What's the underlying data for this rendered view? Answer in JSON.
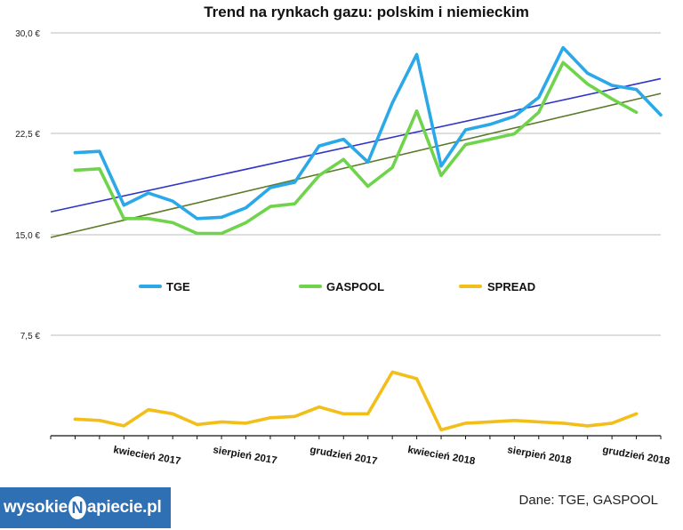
{
  "chart_data": {
    "type": "line",
    "title": "Trend na rynkach gazu: polskim i niemieckim",
    "y_ticks": [
      "30,0 €",
      "22,5 €",
      "15,0 €",
      "7,5 €"
    ],
    "y_tick_values": [
      30,
      22.5,
      15,
      7.5
    ],
    "ylim": [
      0,
      31.5
    ],
    "x_tick_labels": [
      "kwiecień 2017",
      "sierpień 2017",
      "grudzień 2017",
      "kwiecień 2018",
      "sierpień 2018",
      "grudzień 2018"
    ],
    "series": [
      {
        "name": "TGE",
        "color": "#2aa8e8",
        "values": [
          21.1,
          21.2,
          17.2,
          18.1,
          17.5,
          16.2,
          16.3,
          17.0,
          18.5,
          18.9,
          21.6,
          22.1,
          20.4,
          24.8,
          28.4,
          20.1,
          22.8,
          23.2,
          23.8,
          25.2,
          28.9,
          27.0,
          26.1,
          25.8,
          23.9
        ]
      },
      {
        "name": "GASPOOL",
        "color": "#6fd34b",
        "values": [
          19.8,
          19.9,
          16.2,
          16.2,
          15.9,
          15.1,
          15.1,
          15.9,
          17.1,
          17.3,
          19.4,
          20.6,
          18.6,
          20.0,
          24.2,
          19.4,
          21.7,
          22.1,
          22.5,
          24.1,
          27.8,
          26.2,
          25.1,
          24.1
        ]
      },
      {
        "name": "SPREAD",
        "color": "#f2bf1a",
        "values": [
          1.3,
          1.2,
          0.8,
          2.0,
          1.7,
          0.9,
          1.1,
          1.0,
          1.4,
          1.5,
          2.2,
          1.7,
          1.7,
          4.8,
          4.3,
          0.5,
          1.0,
          1.1,
          1.2,
          1.1,
          1.0,
          0.8,
          1.0,
          1.7
        ]
      }
    ],
    "trendlines": [
      {
        "name": "TGE trend",
        "color": "#2f35c6",
        "start": 16.7,
        "end": 26.6
      },
      {
        "name": "GASPOOL trend",
        "color": "#5b7a2a",
        "start": 14.8,
        "end": 25.5
      }
    ],
    "legend": [
      "TGE",
      "GASPOOL",
      "SPREAD"
    ],
    "source": "Dane: TGE, GASPOOL"
  },
  "logo": {
    "left": "wysokie",
    "bolt": "N",
    "right": "apiecie.pl"
  }
}
